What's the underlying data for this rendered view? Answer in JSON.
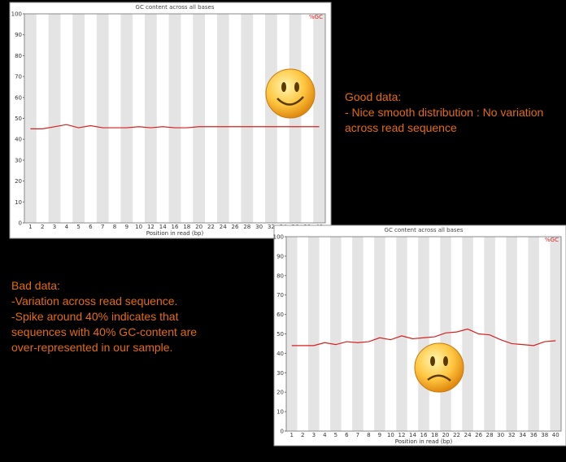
{
  "chart_data": [
    {
      "type": "line",
      "title": "GC content across all bases",
      "x_label": "Position in read (bp)",
      "categories": [
        "1",
        "2",
        "3",
        "4",
        "5",
        "6",
        "7",
        "8",
        "9",
        "10",
        "12",
        "14",
        "16",
        "18",
        "20",
        "22",
        "24",
        "26",
        "28",
        "30",
        "32",
        "34",
        "36",
        "38",
        "40"
      ],
      "series": [
        {
          "name": "%GC",
          "color": "#d62020",
          "values": [
            45,
            45,
            46,
            47,
            45.5,
            46.5,
            45.5,
            45.5,
            45.5,
            46,
            45.5,
            46,
            45.5,
            45.5,
            46,
            46,
            46,
            46,
            46,
            46,
            46,
            46,
            46,
            46,
            46
          ]
        }
      ],
      "ylim": [
        0,
        100
      ],
      "yticks": [
        0,
        10,
        20,
        30,
        40,
        50,
        60,
        70,
        80,
        90,
        100
      ],
      "annotation": [
        "Good data:",
        "- Nice smooth distribution : No variation",
        "across read sequence"
      ]
    },
    {
      "type": "line",
      "title": "GC content across all bases",
      "x_label": "Position in read (bp)",
      "categories": [
        "1",
        "2",
        "3",
        "4",
        "5",
        "6",
        "7",
        "8",
        "9",
        "10",
        "12",
        "14",
        "16",
        "18",
        "20",
        "22",
        "24",
        "26",
        "28",
        "30",
        "32",
        "34",
        "36",
        "38",
        "40"
      ],
      "series": [
        {
          "name": "%GC",
          "color": "#d62020",
          "values": [
            44,
            44,
            44,
            45.5,
            44.5,
            46,
            45.5,
            46,
            48,
            47,
            49,
            47.5,
            48,
            48.5,
            50.5,
            51,
            52.5,
            50,
            49.5,
            47,
            45,
            44.5,
            44,
            46,
            46.5
          ]
        }
      ],
      "ylim": [
        0,
        100
      ],
      "yticks": [
        0,
        10,
        20,
        30,
        40,
        50,
        60,
        70,
        80,
        90,
        100
      ],
      "annotation": [
        "Bad data:",
        "-Variation across read sequence.",
        "-Spike around 40% indicates that",
        "sequences with 40% GC-content are",
        "over-represented in our sample."
      ]
    }
  ]
}
